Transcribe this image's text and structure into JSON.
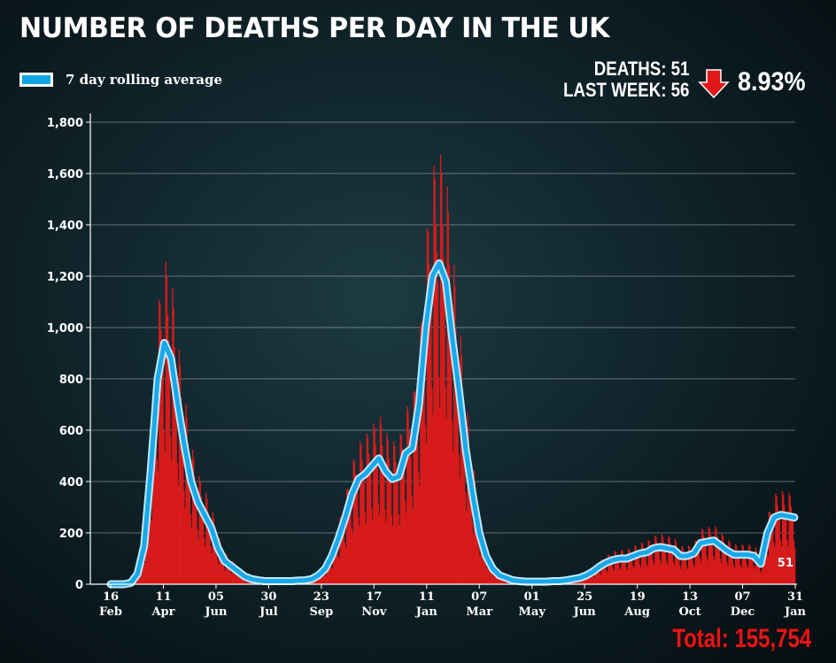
{
  "chart_data": {
    "type": "bar",
    "title": "NUMBER OF DEATHS PER DAY IN THE UK",
    "legend": {
      "label": "7 day rolling average",
      "placement": "top-left",
      "color": "#0ea5e6"
    },
    "bar_color": "#d71a1a",
    "ylim": [
      0,
      1800
    ],
    "yticks": [
      0,
      200,
      400,
      600,
      800,
      1000,
      1200,
      1400,
      1600,
      1800
    ],
    "ytick_labels": [
      "0",
      "200",
      "400",
      "600",
      "800",
      "1,000",
      "1,200",
      "1,400",
      "1,600",
      "1,800"
    ],
    "x_range_days": [
      0,
      715
    ],
    "xticks": [
      {
        "day": 0,
        "day_label": "16",
        "month_label": "Feb"
      },
      {
        "day": 55,
        "day_label": "11",
        "month_label": "Apr"
      },
      {
        "day": 110,
        "day_label": "05",
        "month_label": "Jun"
      },
      {
        "day": 165,
        "day_label": "30",
        "month_label": "Jul"
      },
      {
        "day": 220,
        "day_label": "23",
        "month_label": "Sep"
      },
      {
        "day": 275,
        "day_label": "17",
        "month_label": "Nov"
      },
      {
        "day": 330,
        "day_label": "11",
        "month_label": "Jan"
      },
      {
        "day": 385,
        "day_label": "07",
        "month_label": "Mar"
      },
      {
        "day": 440,
        "day_label": "01",
        "month_label": "May"
      },
      {
        "day": 495,
        "day_label": "25",
        "month_label": "Jun"
      },
      {
        "day": 550,
        "day_label": "19",
        "month_label": "Aug"
      },
      {
        "day": 605,
        "day_label": "13",
        "month_label": "Oct"
      },
      {
        "day": 660,
        "day_label": "07",
        "month_label": "Dec"
      },
      {
        "day": 715,
        "day_label": "31",
        "month_label": "Jan"
      }
    ],
    "rolling_average_weekly": [
      0,
      0,
      0,
      5,
      40,
      150,
      450,
      800,
      940,
      880,
      700,
      540,
      400,
      320,
      270,
      220,
      140,
      90,
      70,
      50,
      30,
      20,
      15,
      12,
      12,
      12,
      12,
      12,
      14,
      15,
      20,
      35,
      60,
      110,
      180,
      260,
      350,
      410,
      430,
      460,
      490,
      440,
      410,
      420,
      510,
      530,
      700,
      1000,
      1200,
      1250,
      1180,
      950,
      750,
      520,
      350,
      200,
      110,
      60,
      35,
      25,
      15,
      12,
      10,
      10,
      10,
      10,
      12,
      12,
      15,
      20,
      25,
      35,
      50,
      70,
      85,
      95,
      100,
      100,
      110,
      120,
      125,
      140,
      145,
      140,
      135,
      110,
      110,
      120,
      160,
      165,
      170,
      150,
      130,
      115,
      115,
      115,
      110,
      80,
      200,
      260,
      270,
      265,
      260
    ],
    "last_value_label": "51"
  },
  "stats": {
    "deaths": "DEATHS: 51",
    "last_week": "LAST WEEK: 56",
    "change": "8.93%",
    "change_direction": "down",
    "change_color": "#e01818"
  },
  "total": "Total: 155,754"
}
